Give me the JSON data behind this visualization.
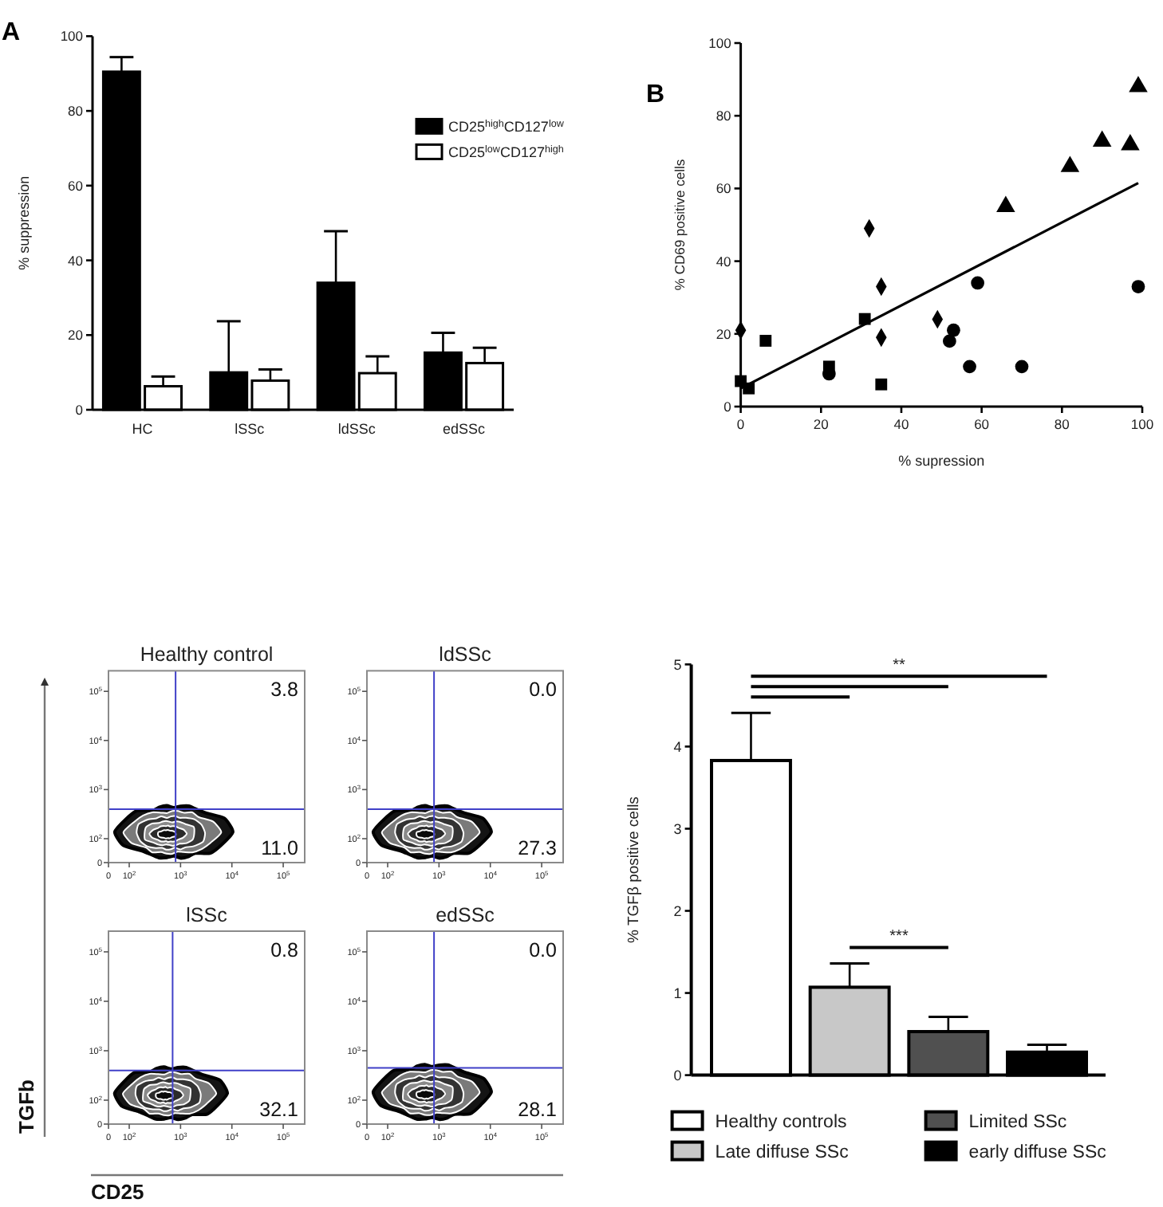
{
  "chart_data": [
    {
      "type": "bar",
      "categories": [
        "HC",
        "lSSc",
        "ldSSc",
        "edSSc"
      ],
      "ylabel": "% suppression",
      "annotations": [
        "A"
      ],
      "ylim": [
        0,
        100
      ],
      "yticks": [
        0,
        20,
        40,
        60,
        80,
        100
      ],
      "legend": "top right",
      "series": [
        {
          "name": "CD25$^{high}$CD127$^{low}$",
          "color": "#000000",
          "values": [
            90.5,
            10,
            34,
            15.3
          ],
          "errors": [
            [
              90.5,
              94.4
            ],
            [
              10,
              23.7
            ],
            [
              34,
              47.8
            ],
            [
              15.3,
              20.6
            ]
          ]
        },
        {
          "name": "CD25$^{low}$CD127$^{high}$",
          "color": "#ffffff",
          "values": [
            6.3,
            7.8,
            9.8,
            12.5
          ],
          "errors": [
            [
              6.3,
              8.9
            ],
            [
              7.8,
              10.8
            ],
            [
              9.8,
              14.3
            ],
            [
              12.5,
              16.6
            ]
          ]
        }
      ]
    },
    {
      "type": "scatter",
      "xlabel": "% supression",
      "ylabel": "% CD69 positive cells",
      "annotations": [
        "B"
      ],
      "xlim": [
        0,
        100
      ],
      "ylim": [
        0,
        100
      ],
      "xticks": [
        0,
        20,
        40,
        60,
        80,
        100
      ],
      "yticks": [
        0,
        20,
        40,
        60,
        80,
        100
      ],
      "series": [
        {
          "color": "#000000",
          "marker": "square",
          "x": [
            0,
            2,
            6.2,
            22,
            30.9,
            35
          ],
          "values": [
            7,
            5,
            18.1,
            11,
            24.1,
            6.1
          ]
        },
        {
          "color": "#000000",
          "marker": "diamond",
          "x": [
            0,
            32,
            35,
            35,
            49
          ],
          "values": [
            21,
            49,
            33,
            19,
            24
          ]
        },
        {
          "color": "#000000",
          "marker": "circle",
          "x": [
            22,
            52,
            53,
            57,
            59,
            70,
            99
          ],
          "values": [
            9,
            18,
            21,
            11,
            34,
            11,
            33
          ]
        },
        {
          "color": "#000000",
          "marker": "triangle",
          "x": [
            66,
            82,
            90,
            97,
            99
          ],
          "values": [
            55,
            66,
            73,
            72,
            88
          ]
        },
        {
          "type": "line",
          "color": "#000000",
          "x": [
            0,
            99
          ],
          "values": [
            5,
            61.5
          ]
        }
      ]
    },
    {
      "type": "scatter",
      "title": "Healthy control",
      "log": "xy",
      "xlim": [
        0,
        262144
      ],
      "ylim": [
        0,
        262144
      ],
      "xticks": [
        0,
        {
          "value": 100,
          "label": "10$^{2}$"
        },
        {
          "value": 1000,
          "label": "10$^{3}$"
        },
        {
          "value": 10000,
          "label": "10$^{4}$"
        },
        {
          "value": 100000,
          "label": "10$^{5}$"
        }
      ],
      "yticks": [
        0,
        {
          "value": 100,
          "label": "10$^{2}$"
        },
        {
          "value": 1000,
          "label": "10$^{3}$"
        },
        {
          "value": 10000,
          "label": "10$^{4}$"
        },
        {
          "value": 100000,
          "label": "10$^{5}$"
        }
      ],
      "ref_lines": [
        {
          "axis": "x",
          "value": 800,
          "color": "#4040c8"
        },
        {
          "axis": "y",
          "value": 400,
          "color": "#4040c8"
        }
      ],
      "annotations": [
        "3.8",
        "11.0"
      ]
    },
    {
      "type": "scatter",
      "title": "ldSSc",
      "log": "xy",
      "xlim": [
        0,
        262144
      ],
      "ylim": [
        0,
        262144
      ],
      "xticks": [
        0,
        {
          "value": 100,
          "label": "10$^{2}$"
        },
        {
          "value": 1000,
          "label": "10$^{3}$"
        },
        {
          "value": 10000,
          "label": "10$^{4}$"
        },
        {
          "value": 100000,
          "label": "10$^{5}$"
        }
      ],
      "yticks": [
        0,
        {
          "value": 100,
          "label": "10$^{2}$"
        },
        {
          "value": 1000,
          "label": "10$^{3}$"
        },
        {
          "value": 10000,
          "label": "10$^{4}$"
        },
        {
          "value": 100000,
          "label": "10$^{5}$"
        }
      ],
      "ref_lines": [
        {
          "axis": "x",
          "value": 800,
          "color": "#4040c8"
        },
        {
          "axis": "y",
          "value": 400,
          "color": "#4040c8"
        }
      ],
      "annotations": [
        "0.0",
        "27.3"
      ]
    },
    {
      "type": "scatter",
      "title": "lSSc",
      "xlabel": "CD25",
      "ylabel": "TGFb",
      "log": "xy",
      "xlim": [
        0,
        262144
      ],
      "ylim": [
        0,
        262144
      ],
      "xticks": [
        0,
        {
          "value": 100,
          "label": "10$^{2}$"
        },
        {
          "value": 1000,
          "label": "10$^{3}$"
        },
        {
          "value": 10000,
          "label": "10$^{4}$"
        },
        {
          "value": 100000,
          "label": "10$^{5}$"
        }
      ],
      "yticks": [
        0,
        {
          "value": 100,
          "label": "10$^{2}$"
        },
        {
          "value": 1000,
          "label": "10$^{3}$"
        },
        {
          "value": 10000,
          "label": "10$^{4}$"
        },
        {
          "value": 100000,
          "label": "10$^{5}$"
        }
      ],
      "ref_lines": [
        {
          "axis": "x",
          "value": 700,
          "color": "#4040c8"
        },
        {
          "axis": "y",
          "value": 400,
          "color": "#4040c8"
        }
      ],
      "annotations": [
        "0.8",
        "32.1"
      ]
    },
    {
      "type": "scatter",
      "title": "edSSc",
      "log": "xy",
      "xlim": [
        0,
        262144
      ],
      "ylim": [
        0,
        262144
      ],
      "xticks": [
        0,
        {
          "value": 100,
          "label": "10$^{2}$"
        },
        {
          "value": 1000,
          "label": "10$^{3}$"
        },
        {
          "value": 10000,
          "label": "10$^{4}$"
        },
        {
          "value": 100000,
          "label": "10$^{5}$"
        }
      ],
      "yticks": [
        0,
        {
          "value": 100,
          "label": "10$^{2}$"
        },
        {
          "value": 1000,
          "label": "10$^{3}$"
        },
        {
          "value": 10000,
          "label": "10$^{4}$"
        },
        {
          "value": 100000,
          "label": "10$^{5}$"
        }
      ],
      "ref_lines": [
        {
          "axis": "x",
          "value": 800,
          "color": "#4040c8"
        },
        {
          "axis": "y",
          "value": 450,
          "color": "#4040c8"
        }
      ],
      "annotations": [
        "0.0",
        "28.1"
      ]
    },
    {
      "type": "bar",
      "categories": [
        null
      ],
      "ylabel": "% TGFβ positive cells",
      "ylim": [
        0,
        5
      ],
      "yticks": [
        0,
        1,
        2,
        3,
        4,
        5
      ],
      "legend": "bottom",
      "annotations": [
        "**",
        "***"
      ],
      "series": [
        {
          "name": "Healthy controls",
          "color": "#ffffff",
          "values": [
            3.83
          ],
          "errors": [
            [
              3.83,
              4.41
            ]
          ]
        },
        {
          "name": "Late diffuse SSc",
          "color": "#c8c8c8",
          "values": [
            1.07
          ],
          "errors": [
            [
              1.07,
              1.36
            ]
          ]
        },
        {
          "name": "Limited SSc",
          "color": "#505050",
          "values": [
            0.53
          ],
          "errors": [
            [
              0.53,
              0.71
            ]
          ]
        },
        {
          "name": "early diffuse SSc",
          "color": "#000000",
          "values": [
            0.28
          ],
          "errors": [
            [
              0.28,
              0.37
            ]
          ]
        }
      ]
    }
  ]
}
